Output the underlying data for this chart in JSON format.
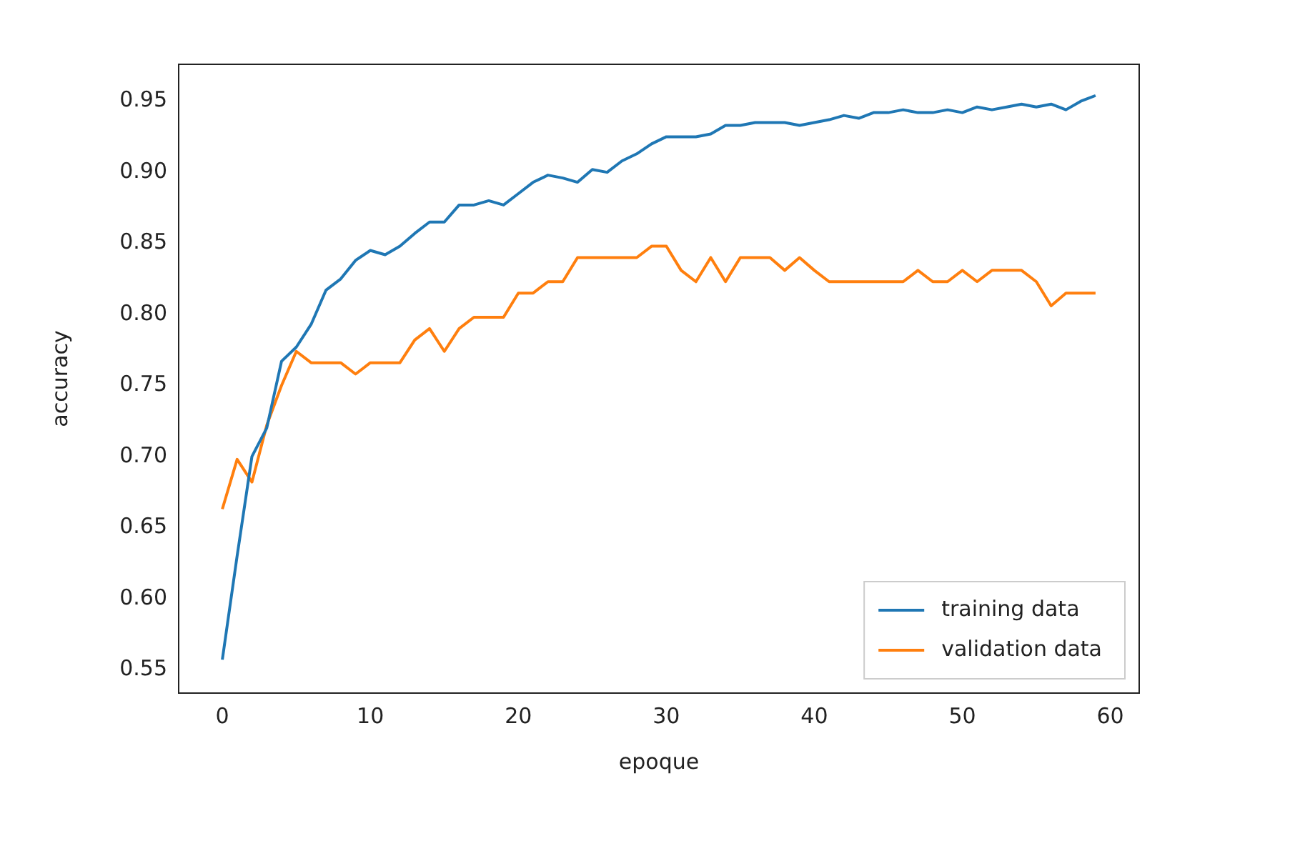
{
  "chart_data": {
    "type": "line",
    "xlabel": "epoque",
    "ylabel": "accuracy",
    "x": [
      0,
      1,
      2,
      3,
      4,
      5,
      6,
      7,
      8,
      9,
      10,
      11,
      12,
      13,
      14,
      15,
      16,
      17,
      18,
      19,
      20,
      21,
      22,
      23,
      24,
      25,
      26,
      27,
      28,
      29,
      30,
      31,
      32,
      33,
      34,
      35,
      36,
      37,
      38,
      39,
      40,
      41,
      42,
      43,
      44,
      45,
      46,
      47,
      48,
      49,
      50,
      51,
      52,
      53,
      54,
      55,
      56,
      57,
      58,
      59
    ],
    "series": [
      {
        "name": "training data",
        "color": "#1f77b4",
        "values": [
          0.557,
          0.63,
          0.7,
          0.72,
          0.767,
          0.777,
          0.793,
          0.817,
          0.825,
          0.838,
          0.845,
          0.842,
          0.848,
          0.857,
          0.865,
          0.865,
          0.877,
          0.877,
          0.88,
          0.877,
          0.885,
          0.893,
          0.898,
          0.896,
          0.893,
          0.902,
          0.9,
          0.908,
          0.913,
          0.92,
          0.925,
          0.925,
          0.925,
          0.927,
          0.933,
          0.933,
          0.935,
          0.935,
          0.935,
          0.933,
          0.935,
          0.937,
          0.94,
          0.938,
          0.942,
          0.942,
          0.944,
          0.942,
          0.942,
          0.944,
          0.942,
          0.946,
          0.944,
          0.946,
          0.948,
          0.946,
          0.948,
          0.944,
          0.95,
          0.954
        ]
      },
      {
        "name": "validation data",
        "color": "#ff7f0e",
        "values": [
          0.663,
          0.698,
          0.682,
          0.722,
          0.75,
          0.774,
          0.766,
          0.766,
          0.766,
          0.758,
          0.766,
          0.766,
          0.766,
          0.782,
          0.79,
          0.774,
          0.79,
          0.798,
          0.798,
          0.798,
          0.815,
          0.815,
          0.823,
          0.823,
          0.84,
          0.84,
          0.84,
          0.84,
          0.84,
          0.848,
          0.848,
          0.831,
          0.823,
          0.84,
          0.823,
          0.84,
          0.84,
          0.84,
          0.831,
          0.84,
          0.831,
          0.823,
          0.823,
          0.823,
          0.823,
          0.823,
          0.823,
          0.831,
          0.823,
          0.823,
          0.831,
          0.823,
          0.831,
          0.831,
          0.831,
          0.823,
          0.806,
          0.815,
          0.815,
          0.815
        ]
      }
    ],
    "xlim": [
      -2.95,
      61.95
    ],
    "xticks": [
      0,
      10,
      20,
      30,
      40,
      50,
      60
    ],
    "ylim": [
      0.5335,
      0.976
    ],
    "yticks": [
      {
        "value": 0.55,
        "label": "0.55"
      },
      {
        "value": 0.6,
        "label": "0.60"
      },
      {
        "value": 0.65,
        "label": "0.65"
      },
      {
        "value": 0.7,
        "label": "0.70"
      },
      {
        "value": 0.75,
        "label": "0.75"
      },
      {
        "value": 0.8,
        "label": "0.80"
      },
      {
        "value": 0.85,
        "label": "0.85"
      },
      {
        "value": 0.9,
        "label": "0.90"
      },
      {
        "value": 0.95,
        "label": "0.95"
      }
    ],
    "legend": "bottom right",
    "grid": false,
    "line_style": "solid",
    "marker": "none"
  }
}
